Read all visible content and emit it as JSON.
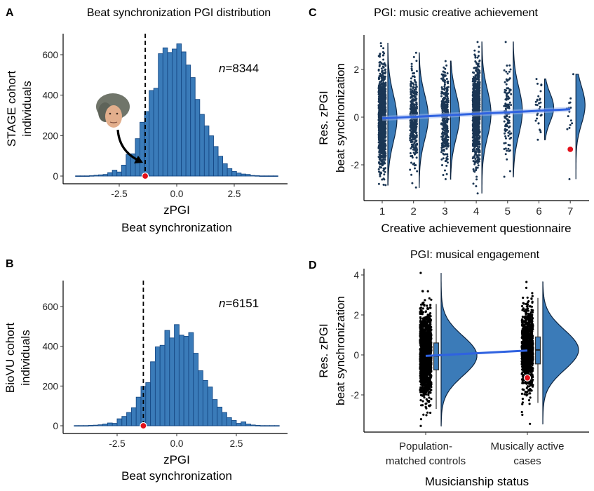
{
  "colors": {
    "bar_fill": "#3a7bb9",
    "bar_stroke": "#174a86",
    "violin_fill": "#3b7bb8",
    "violin_stroke": "#0e2540",
    "point_c": "#1b3654",
    "point_d": "#000000",
    "regression": "#2f62e0",
    "highlight": "#e3101a"
  },
  "chart_data": [
    {
      "panel": "A",
      "type": "bar",
      "title": "Beat synchronization PGI distribution",
      "xlabel": [
        "zPGI",
        "Beat synchronization"
      ],
      "ylabel": [
        "STAGE cohort",
        "individuals"
      ],
      "annotation": {
        "italic": "n",
        "text": "=8344"
      },
      "xticks": [
        "-2.5",
        "0.0",
        "2.5"
      ],
      "xtick_values": [
        -2.5,
        0,
        2.5
      ],
      "yticks": [
        "0",
        "200",
        "400",
        "600"
      ],
      "ytick_values": [
        0,
        200,
        400,
        600
      ],
      "bin_width": 0.2,
      "bin_centers_start": -4.3,
      "counts": [
        1,
        1,
        1,
        2,
        4,
        6,
        8,
        17,
        29,
        20,
        54,
        107,
        110,
        185,
        266,
        319,
        423,
        434,
        605,
        634,
        611,
        628,
        654,
        614,
        549,
        487,
        379,
        305,
        248,
        199,
        146,
        98,
        61,
        37,
        23,
        15,
        10,
        8,
        3,
        2,
        1,
        1,
        1,
        1
      ],
      "highlight_x": -1.37,
      "dashed_line_x": -1.37,
      "icon": "beethoven-portrait"
    },
    {
      "panel": "B",
      "type": "bar",
      "xlabel": [
        "zPGI",
        "Beat synchronization"
      ],
      "ylabel": [
        "BioVU cohort",
        "individuals"
      ],
      "annotation": {
        "italic": "n",
        "text": "=6151"
      },
      "xticks": [
        "-2.5",
        "0.0",
        "2.5"
      ],
      "xtick_values": [
        -2.5,
        0,
        2.5
      ],
      "yticks": [
        "0",
        "200",
        "400",
        "600"
      ],
      "ytick_values": [
        0,
        200,
        400,
        600
      ],
      "bin_width": 0.2,
      "bin_centers_start": -4.2,
      "counts": [
        1,
        1,
        1,
        2,
        3,
        5,
        9,
        14,
        12,
        35,
        47,
        67,
        91,
        144,
        198,
        217,
        322,
        397,
        405,
        480,
        442,
        509,
        456,
        450,
        469,
        365,
        277,
        228,
        195,
        132,
        94,
        67,
        41,
        27,
        12,
        20,
        9,
        4,
        2,
        1,
        1,
        1,
        1
      ],
      "highlight_x": -1.4,
      "dashed_line_x": -1.4
    },
    {
      "panel": "C",
      "type": "scatter",
      "subtype": "raincloud",
      "title": "PGI: music creative achievement",
      "xlabel": "Creative achievement questionnaire",
      "ylabel": [
        "Res. zPGI",
        "beat synchronization"
      ],
      "categories": [
        "1",
        "2",
        "3",
        "4",
        "5",
        "6",
        "7"
      ],
      "yticks": [
        "-2",
        "0",
        "2"
      ],
      "ytick_values": [
        -2,
        0,
        2
      ],
      "groups": [
        {
          "category": "1",
          "min": -2.85,
          "max": 3.1,
          "mean": -0.05,
          "sd": 1.0,
          "approx_n": 1200
        },
        {
          "category": "2",
          "min": -2.95,
          "max": 2.7,
          "mean": 0.0,
          "sd": 0.95,
          "approx_n": 350
        },
        {
          "category": "3",
          "min": -2.6,
          "max": 2.35,
          "mean": 0.05,
          "sd": 0.95,
          "approx_n": 350
        },
        {
          "category": "4",
          "min": -3.2,
          "max": 3.15,
          "mean": 0.15,
          "sd": 1.0,
          "approx_n": 900
        },
        {
          "category": "5",
          "min": -2.5,
          "max": 3.15,
          "mean": 0.25,
          "sd": 1.0,
          "approx_n": 120
        },
        {
          "category": "6",
          "min": -0.95,
          "max": 1.6,
          "mean": 0.4,
          "sd": 0.6,
          "approx_n": 30
        },
        {
          "category": "7",
          "min": -2.6,
          "max": 1.8,
          "mean": 0.5,
          "sd": 0.8,
          "approx_n": 15
        }
      ],
      "regression": {
        "from": [
          1,
          -0.05
        ],
        "to": [
          7,
          0.33
        ]
      },
      "highlight": {
        "category": "7",
        "y": -1.35
      }
    },
    {
      "panel": "D",
      "type": "scatter",
      "subtype": "raincloud",
      "title": "PGI: musical engagement",
      "xlabel": "Musicianship status",
      "ylabel": [
        "Res. zPGI",
        "beat synchronization"
      ],
      "categories": [
        [
          "Population-",
          "matched controls"
        ],
        [
          "Musically active",
          "cases"
        ]
      ],
      "yticks": [
        "-2",
        "0",
        "2",
        "4"
      ],
      "ytick_values": [
        -2,
        0,
        2,
        4
      ],
      "groups": [
        {
          "min": -3.55,
          "max": 4.1,
          "mean": -0.05,
          "sd": 1.0,
          "approx_n": 1600,
          "box": {
            "whisker_low": -2.7,
            "q1": -0.75,
            "median": -0.05,
            "q3": 0.6,
            "whisker_high": 2.55
          }
        },
        {
          "min": -3.45,
          "max": 3.65,
          "mean": 0.25,
          "sd": 1.0,
          "approx_n": 1100,
          "box": {
            "whisker_low": -2.4,
            "q1": -0.45,
            "median": 0.25,
            "q3": 0.9,
            "whisker_high": 2.85
          }
        }
      ],
      "regression": {
        "from": [
          0,
          -0.05
        ],
        "to": [
          1,
          0.22
        ]
      },
      "highlight": {
        "group": 1,
        "y": -1.15
      }
    }
  ]
}
